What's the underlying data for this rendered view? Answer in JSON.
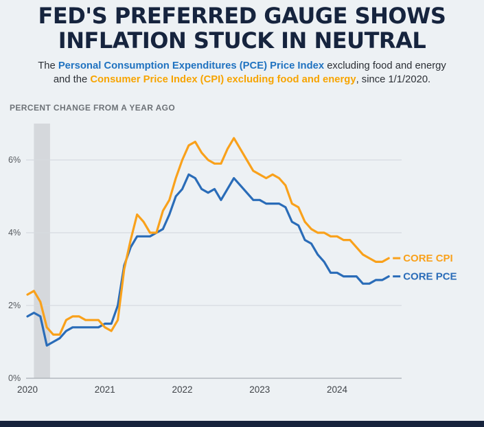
{
  "header": {
    "title": "FED'S PREFERRED GAUGE SHOWS\nINFLATION STUCK IN NEUTRAL",
    "subtitle_segments": [
      {
        "text": "The ",
        "style": "normal"
      },
      {
        "text": "Personal Consumption Expenditures (PCE) Price Index",
        "style": "blue"
      },
      {
        "text": " excluding food and energy and the ",
        "style": "normal"
      },
      {
        "text": "Consumer Price Index (CPI) excluding food and energy",
        "style": "orange"
      },
      {
        "text": ", since 1/1/2020.",
        "style": "normal"
      }
    ]
  },
  "chart_data": {
    "type": "line",
    "title": "",
    "ylabel": "PERCENT CHANGE FROM A YEAR AGO",
    "xlabel": "",
    "x_unit": "month",
    "x_start": 2020.0,
    "x_step_years": 0.0833333,
    "xlim": [
      2020,
      2024.8333
    ],
    "ylim": [
      0,
      7.0
    ],
    "grid": true,
    "legend_position": "right-end-labels",
    "y_ticks": [
      {
        "value": 0,
        "label": "0%"
      },
      {
        "value": 2,
        "label": "2%"
      },
      {
        "value": 4,
        "label": "4%"
      },
      {
        "value": 6,
        "label": "6%"
      }
    ],
    "x_ticks": [
      {
        "value": 2020,
        "label": "2020"
      },
      {
        "value": 2021,
        "label": "2021"
      },
      {
        "value": 2022,
        "label": "2022"
      },
      {
        "value": 2023,
        "label": "2023"
      },
      {
        "value": 2024,
        "label": "2024"
      }
    ],
    "recession_band": {
      "x0": 2020.0833,
      "x1": 2020.2917
    },
    "series": [
      {
        "name": "CORE PCE",
        "color": "#2A6CB8",
        "values": [
          1.7,
          1.8,
          1.7,
          0.9,
          1.0,
          1.1,
          1.3,
          1.4,
          1.4,
          1.4,
          1.4,
          1.4,
          1.5,
          1.5,
          2.0,
          3.1,
          3.6,
          3.9,
          3.9,
          3.9,
          4.0,
          4.1,
          4.5,
          5.0,
          5.2,
          5.6,
          5.5,
          5.2,
          5.1,
          5.2,
          4.9,
          5.2,
          5.5,
          5.3,
          5.1,
          4.9,
          4.9,
          4.8,
          4.8,
          4.8,
          4.7,
          4.3,
          4.2,
          3.8,
          3.7,
          3.4,
          3.2,
          2.9,
          2.9,
          2.8,
          2.8,
          2.8,
          2.6,
          2.6,
          2.7,
          2.7,
          2.8
        ]
      },
      {
        "name": "CORE CPI",
        "color": "#F9A11B",
        "values": [
          2.3,
          2.4,
          2.1,
          1.4,
          1.2,
          1.2,
          1.6,
          1.7,
          1.7,
          1.6,
          1.6,
          1.6,
          1.4,
          1.3,
          1.6,
          3.0,
          3.8,
          4.5,
          4.3,
          4.0,
          4.0,
          4.6,
          4.9,
          5.5,
          6.0,
          6.4,
          6.5,
          6.2,
          6.0,
          5.9,
          5.9,
          6.3,
          6.6,
          6.3,
          6.0,
          5.7,
          5.6,
          5.5,
          5.6,
          5.5,
          5.3,
          4.8,
          4.7,
          4.3,
          4.1,
          4.0,
          4.0,
          3.9,
          3.9,
          3.8,
          3.8,
          3.6,
          3.4,
          3.3,
          3.2,
          3.2,
          3.3
        ]
      }
    ]
  },
  "colors": {
    "background": "#EDF1F4",
    "title_navy": "#16243E",
    "subtitle_blue": "#1F72C0",
    "subtitle_orange": "#F7A400",
    "grid": "#D7DBE0",
    "axis": "#A7ADB3",
    "tick_text": "#55595E",
    "x_tick_text": "#3F4348",
    "ylabel_text": "#6D7277",
    "recession_band": "#D5D8DC",
    "footer_bar": "#16233C"
  }
}
